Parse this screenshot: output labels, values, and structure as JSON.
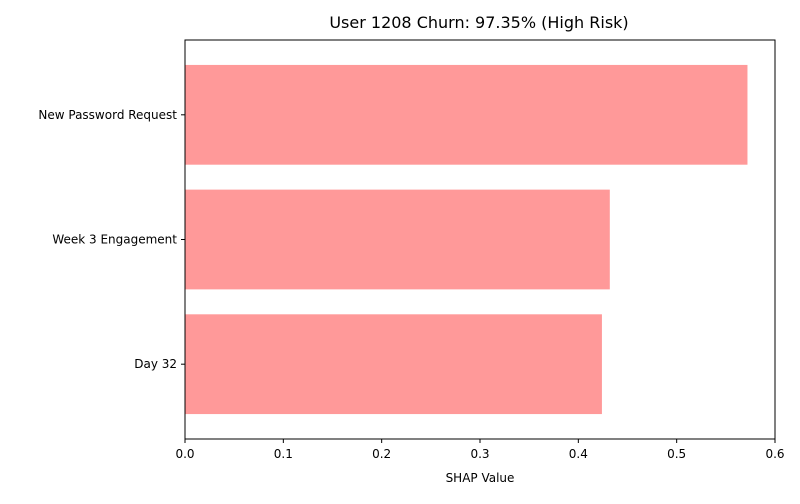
{
  "chart_data": {
    "type": "bar",
    "orientation": "horizontal",
    "title": "User 1208 Churn: 97.35% (High Risk)",
    "xlabel": "SHAP Value",
    "ylabel": "",
    "categories": [
      "New Password Request",
      "Week 3 Engagement",
      "Day 32"
    ],
    "values": [
      0.572,
      0.432,
      0.424
    ],
    "xlim": [
      0,
      0.6
    ],
    "xticks": [
      0.0,
      0.1,
      0.2,
      0.3,
      0.4,
      0.5,
      0.6
    ],
    "xtick_labels": [
      "0.0",
      "0.1",
      "0.2",
      "0.3",
      "0.4",
      "0.5",
      "0.6"
    ],
    "bar_color": "#ff9999",
    "grid": false,
    "legend": "none"
  }
}
